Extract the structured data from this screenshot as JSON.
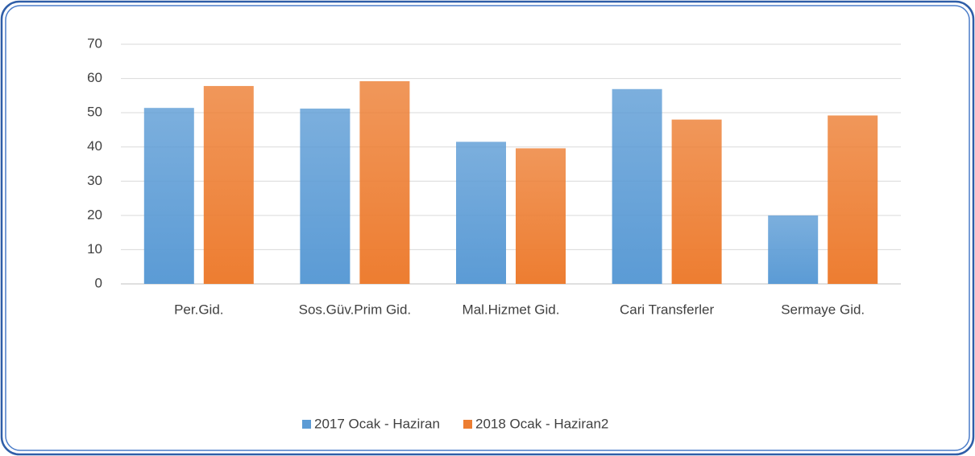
{
  "chart_data": {
    "type": "bar",
    "categories": [
      "Per.Gid.",
      "Sos.Güv.Prim Gid.",
      "Mal.Hizmet Gid.",
      "Cari Transferler",
      "Sermaye Gid."
    ],
    "series": [
      {
        "name": "2017 Ocak - Haziran",
        "color": "#5b9bd5",
        "values": [
          51.4,
          51.2,
          41.5,
          56.9,
          20.0
        ]
      },
      {
        "name": "2018 Ocak - Haziran2",
        "color": "#ed7d31",
        "values": [
          57.8,
          59.2,
          39.6,
          48.0,
          49.2
        ]
      }
    ],
    "ylim": [
      0,
      70
    ],
    "yticks": [
      0,
      10,
      20,
      30,
      40,
      50,
      60,
      70
    ],
    "grid": true,
    "legend": "bottom"
  }
}
